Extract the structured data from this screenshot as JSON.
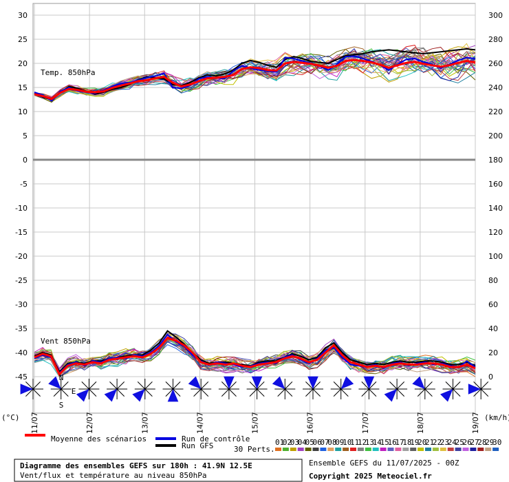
{
  "chart_data": {
    "type": "line",
    "title": "Diagramme des ensembles GEFS sur 180h : 41.9N 12.5E",
    "subtitle": "Vent/flux et température au niveau 850hPa",
    "run_label": "Ensemble GEFS du 11/07/2025 - 00Z",
    "copyright": "Copyright 2025 Meteociel.fr",
    "panel_labels": {
      "temp": "Temp. 850hPa",
      "wind": "Vent 850hPa"
    },
    "left_axis": {
      "unit": "(°C)",
      "range": [
        -50,
        30
      ],
      "ticks": [
        30,
        25,
        20,
        15,
        10,
        5,
        0,
        -5,
        -10,
        -15,
        -20,
        -25,
        -30,
        -35,
        -40,
        -45
      ]
    },
    "right_axis": {
      "unit": "(km/h)",
      "ticks": [
        300,
        280,
        260,
        240,
        220,
        200,
        180,
        160,
        140,
        120,
        100,
        80,
        60,
        40,
        20,
        0
      ]
    },
    "x_labels": [
      "11/07",
      "12/07",
      "13/07",
      "14/07",
      "15/07",
      "16/07",
      "17/07",
      "18/07",
      "19/07"
    ],
    "legend": {
      "mean": "Moyenne des scénarios",
      "control": "Run de contrôle",
      "gfs": "Run GFS",
      "perts_label": "30 Perts.",
      "members": [
        "01",
        "02",
        "03",
        "04",
        "05",
        "06",
        "07",
        "08",
        "09",
        "10",
        "11",
        "12",
        "13",
        "14",
        "15",
        "16",
        "17",
        "18",
        "19",
        "20",
        "21",
        "22",
        "23",
        "24",
        "25",
        "26",
        "27",
        "28",
        "29",
        "30"
      ],
      "member_colors": [
        "#e07020",
        "#50b030",
        "#c0a000",
        "#a040c0",
        "#606000",
        "#404040",
        "#2060e0",
        "#e0a060",
        "#20a0a0",
        "#a06020",
        "#e02020",
        "#808080",
        "#40c040",
        "#20c0c0",
        "#c020c0",
        "#6060c0",
        "#e060a0",
        "#a0a0a0",
        "#606060",
        "#c0c000",
        "#2080a0",
        "#a0c040",
        "#e0c040",
        "#c04040",
        "#4040a0",
        "#c060e0",
        "#2020a0",
        "#a02020",
        "#c0a080",
        "#2060c0"
      ]
    },
    "series": [
      {
        "name": "Moyenne des scénarios",
        "color": "#ff0000",
        "temp": [
          13.6,
          13.2,
          12.6,
          13.9,
          14.7,
          14.5,
          14.1,
          14.0,
          14.2,
          14.9,
          15.4,
          15.8,
          16.3,
          16.5,
          16.9,
          17.2,
          16.0,
          15.2,
          15.6,
          16.3,
          16.9,
          17.0,
          17.2,
          17.6,
          18.8,
          19.2,
          19.0,
          18.6,
          18.5,
          20.0,
          20.3,
          20.1,
          19.9,
          19.5,
          19.1,
          19.5,
          20.5,
          20.7,
          20.5,
          20.2,
          19.7,
          19.1,
          19.6,
          20.1,
          20.3,
          19.9,
          19.6,
          19.3,
          19.6,
          20.1,
          20.5,
          20.2
        ],
        "wind": [
          16,
          19,
          17,
          2,
          9,
          11,
          10,
          12,
          11,
          14,
          15,
          16,
          17,
          16,
          19,
          24,
          32,
          30,
          26,
          20,
          12,
          10,
          11,
          10,
          11,
          9,
          8,
          10,
          11,
          12,
          15,
          17,
          15,
          12,
          14,
          20,
          26,
          18,
          12,
          10,
          8,
          9,
          8,
          10,
          11,
          10,
          10,
          11,
          11,
          10,
          8,
          8,
          10,
          7
        ]
      },
      {
        "name": "Run de contrôle",
        "color": "#0000e0",
        "temp": [
          14.0,
          13.4,
          12.2,
          14.2,
          15.0,
          14.3,
          14.0,
          13.8,
          14.4,
          15.2,
          15.8,
          16.0,
          16.5,
          17.0,
          17.4,
          17.9,
          15.0,
          14.8,
          15.4,
          16.8,
          17.2,
          17.0,
          16.8,
          18.4,
          19.5,
          19.0,
          18.6,
          18.4,
          18.2,
          21.2,
          21.0,
          20.5,
          20.0,
          19.4,
          18.6,
          19.8,
          21.4,
          21.5,
          21.0,
          20.4,
          19.6,
          18.6,
          19.8,
          20.8,
          21.0,
          20.3,
          19.8,
          19.0,
          19.8,
          20.6,
          21.2,
          21.0
        ],
        "wind": [
          15,
          18,
          16,
          3,
          10,
          12,
          9,
          13,
          12,
          15,
          16,
          15,
          18,
          17,
          20,
          26,
          35,
          29,
          25,
          18,
          13,
          10,
          12,
          11,
          10,
          8,
          9,
          11,
          12,
          11,
          16,
          18,
          14,
          11,
          15,
          22,
          24,
          16,
          10,
          9,
          8,
          10,
          7,
          11,
          12,
          9,
          11,
          12,
          10,
          11,
          9,
          8,
          13,
          8
        ]
      },
      {
        "name": "Run GFS",
        "color": "#000000",
        "temp": [
          13.8,
          13.0,
          12.4,
          14.0,
          15.2,
          14.8,
          14.2,
          13.6,
          14.0,
          14.6,
          15.0,
          15.6,
          16.6,
          17.2,
          17.0,
          16.8,
          15.6,
          15.4,
          16.0,
          17.0,
          17.6,
          17.4,
          17.8,
          18.6,
          20.0,
          20.6,
          20.2,
          19.6,
          19.2,
          20.8,
          21.4,
          21.0,
          20.4,
          20.2,
          20.0,
          20.8,
          21.6,
          21.8,
          22.0,
          22.4,
          22.6,
          22.8,
          22.6,
          22.4,
          22.2,
          22.0,
          22.2,
          22.4,
          22.6,
          22.8,
          23.0,
          22.8
        ],
        "wind": [
          17,
          20,
          18,
          4,
          11,
          12,
          11,
          13,
          13,
          15,
          16,
          17,
          18,
          18,
          22,
          28,
          38,
          33,
          27,
          20,
          14,
          11,
          12,
          12,
          11,
          10,
          9,
          12,
          13,
          13,
          16,
          19,
          17,
          14,
          16,
          24,
          28,
          20,
          14,
          12,
          10,
          11,
          10,
          12,
          13,
          12,
          12,
          13,
          13,
          12,
          10,
          10,
          12,
          9
        ]
      }
    ],
    "wind_roses": [
      {
        "day": "11/07",
        "direction": "W"
      },
      {
        "day": "11/07",
        "direction": "NW"
      },
      {
        "day": "12/07",
        "direction": "SW"
      },
      {
        "day": "12/07",
        "direction": "SW"
      },
      {
        "day": "13/07",
        "direction": "SW"
      },
      {
        "day": "13/07",
        "direction": "S"
      },
      {
        "day": "14/07",
        "direction": "NW"
      },
      {
        "day": "14/07",
        "direction": "N"
      },
      {
        "day": "15/07",
        "direction": "N"
      },
      {
        "day": "15/07",
        "direction": "NW"
      },
      {
        "day": "16/07",
        "direction": "N"
      },
      {
        "day": "16/07",
        "direction": "NE"
      },
      {
        "day": "17/07",
        "direction": "N"
      },
      {
        "day": "17/07",
        "direction": "SW"
      },
      {
        "day": "18/07",
        "direction": "NW"
      },
      {
        "day": "18/07",
        "direction": "SW"
      },
      {
        "day": "19/07",
        "direction": "W"
      }
    ],
    "compass_letters": [
      "N",
      "E",
      "S"
    ],
    "grid": true
  }
}
